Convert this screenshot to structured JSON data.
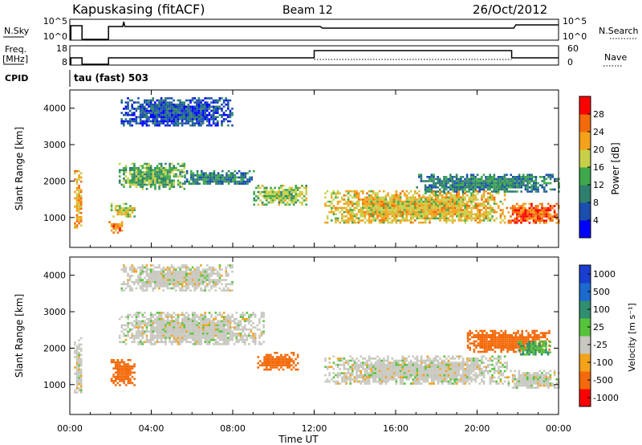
{
  "header": {
    "station": "Kapuskasing (fitACF)",
    "beam": "Beam 12",
    "date": "26/Oct/2012"
  },
  "status_panels": {
    "nsky_label": "N.Sky",
    "nsky_top_tick": "10^5",
    "nsky_bottom_tick": "10^0",
    "nsearch_label": "N.Search",
    "nsearch_top_tick": "10^5",
    "nsearch_bottom_tick": "10^0",
    "freq_label_line1": "Freq.",
    "freq_label_line2": "[MHz]",
    "freq_top_tick": "18",
    "freq_bottom_tick": "8",
    "nave_label": "Nave",
    "nave_top_tick": "60",
    "nave_bottom_tick": "0",
    "cpid_label": "CPID",
    "cpid_value": "tau (fast) 503"
  },
  "colorbars": {
    "power": {
      "label": "Power [dB]",
      "ticks": [
        "28",
        "24",
        "20",
        "16",
        "12",
        "8",
        "4"
      ],
      "colors": [
        "#0000ff",
        "#1a4fb0",
        "#2f7f6e",
        "#3da94a",
        "#c8d04a",
        "#f4a21a",
        "#f46a0a",
        "#ff0000"
      ]
    },
    "velocity": {
      "label": "Velocity [m s⁻¹]",
      "ticks": [
        "1000",
        "500",
        "100",
        "25",
        "-25",
        "-100",
        "-500",
        "-1000"
      ],
      "colors": [
        "#1a3ecf",
        "#1a6ad0",
        "#2f8f6e",
        "#56c43a",
        "#c8c8c0",
        "#f4a21a",
        "#f46a0a",
        "#ff0000"
      ]
    }
  },
  "chart_data": [
    {
      "type": "heatmap",
      "title": "Power",
      "xlabel": "Time UT",
      "ylabel": "Slant Range [km]",
      "x_ticks": [
        "00:00",
        "04:00",
        "08:00",
        "12:00",
        "16:00",
        "20:00",
        "00:00"
      ],
      "y_ticks": [
        "1000",
        "2000",
        "3000",
        "4000"
      ],
      "xlim_hours": [
        0,
        24
      ],
      "ylim_km": [
        180,
        4500
      ],
      "color_scale_db": [
        0,
        32
      ],
      "regions": [
        {
          "t": [
            0.2,
            0.6
          ],
          "r": [
            700,
            2300
          ],
          "db": 22
        },
        {
          "t": [
            1.9,
            2.6
          ],
          "r": [
            600,
            900
          ],
          "db": 24
        },
        {
          "t": [
            2.0,
            3.2
          ],
          "r": [
            1000,
            1400
          ],
          "db": 18
        },
        {
          "t": [
            2.4,
            5.6
          ],
          "r": [
            1800,
            2500
          ],
          "db": 14
        },
        {
          "t": [
            5.5,
            9.0
          ],
          "r": [
            1900,
            2300
          ],
          "db": 10
        },
        {
          "t": [
            9.0,
            11.6
          ],
          "r": [
            1350,
            1900
          ],
          "db": 16
        },
        {
          "t": [
            12.5,
            21.5
          ],
          "r": [
            850,
            1750
          ],
          "db": 20
        },
        {
          "t": [
            21.5,
            24.0
          ],
          "r": [
            850,
            1400
          ],
          "db": 26
        },
        {
          "t": [
            17.0,
            24.0
          ],
          "r": [
            1700,
            2200
          ],
          "db": 10
        },
        {
          "t": [
            2.5,
            8.0
          ],
          "r": [
            3500,
            4300
          ],
          "db": 6
        }
      ]
    },
    {
      "type": "heatmap",
      "title": "Velocity",
      "xlabel": "Time UT",
      "ylabel": "Slant Range [km]",
      "x_ticks": [
        "00:00",
        "04:00",
        "08:00",
        "12:00",
        "16:00",
        "20:00",
        "00:00"
      ],
      "y_ticks": [
        "1000",
        "2000",
        "3000",
        "4000"
      ],
      "xlim_hours": [
        0,
        24
      ],
      "ylim_km": [
        180,
        4500
      ],
      "color_scale_ms": [
        -1000,
        1000
      ],
      "regions": [
        {
          "t": [
            0.2,
            0.6
          ],
          "r": [
            700,
            2300
          ],
          "v": 0
        },
        {
          "t": [
            2.0,
            3.2
          ],
          "r": [
            1000,
            1700
          ],
          "v": -150
        },
        {
          "t": [
            2.4,
            9.5
          ],
          "r": [
            2100,
            3000
          ],
          "v": 0
        },
        {
          "t": [
            9.2,
            11.2
          ],
          "r": [
            1400,
            1900
          ],
          "v": -200
        },
        {
          "t": [
            12.5,
            21.5
          ],
          "r": [
            1000,
            1800
          ],
          "v": 0
        },
        {
          "t": [
            21.5,
            24.0
          ],
          "r": [
            900,
            1400
          ],
          "v": 0
        },
        {
          "t": [
            19.5,
            23.5
          ],
          "r": [
            1900,
            2500
          ],
          "v": -200
        },
        {
          "t": [
            22.0,
            23.6
          ],
          "r": [
            1800,
            2200
          ],
          "v": 100
        },
        {
          "t": [
            2.5,
            8.0
          ],
          "r": [
            3600,
            4300
          ],
          "v": 0
        }
      ]
    }
  ]
}
